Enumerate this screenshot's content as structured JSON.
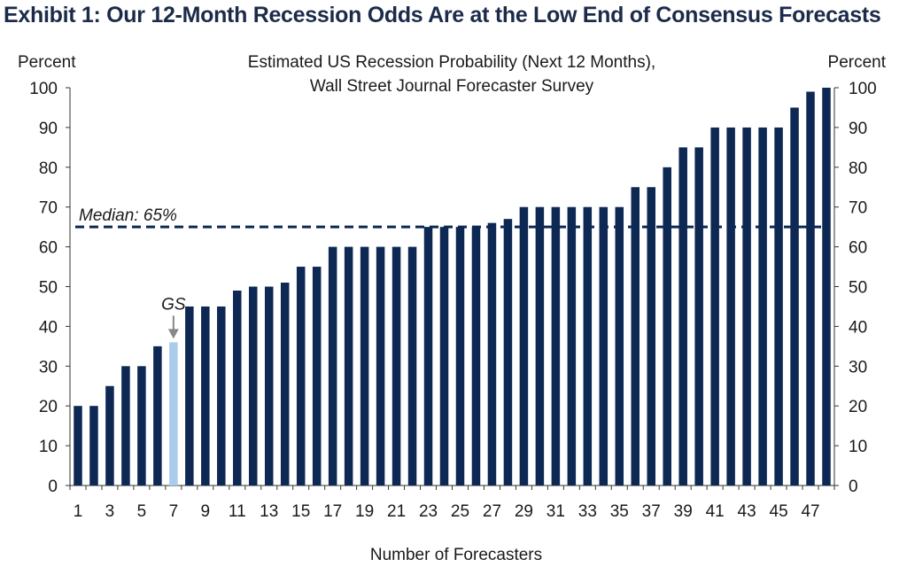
{
  "exhibit_title": "Exhibit 1: Our 12-Month Recession Odds Are at the Low End of Consensus Forecasts",
  "chart_data": {
    "type": "bar",
    "title_lines": [
      "Estimated US Recession Probability (Next 12 Months),",
      "Wall Street Journal Forecaster Survey"
    ],
    "ylabel_left": "Percent",
    "ylabel_right": "Percent",
    "xlabel": "Number of Forecasters",
    "ylim": [
      0,
      100
    ],
    "yticks": [
      0,
      10,
      20,
      30,
      40,
      50,
      60,
      70,
      80,
      90,
      100
    ],
    "xtick_labels": [
      "1",
      "3",
      "5",
      "7",
      "9",
      "11",
      "13",
      "15",
      "17",
      "19",
      "21",
      "23",
      "25",
      "27",
      "29",
      "31",
      "33",
      "35",
      "37",
      "39",
      "41",
      "43",
      "45",
      "47"
    ],
    "categories": [
      1,
      2,
      3,
      4,
      5,
      6,
      7,
      8,
      9,
      10,
      11,
      12,
      13,
      14,
      15,
      16,
      17,
      18,
      19,
      20,
      21,
      22,
      23,
      24,
      25,
      26,
      27,
      28,
      29,
      30,
      31,
      32,
      33,
      34,
      35,
      36,
      37,
      38,
      39,
      40,
      41,
      42,
      43,
      44,
      45,
      46,
      47,
      48
    ],
    "values": [
      20,
      20,
      25,
      30,
      30,
      35,
      36,
      45,
      45,
      45,
      49,
      50,
      50,
      51,
      55,
      55,
      60,
      60,
      60,
      60,
      60,
      60,
      65,
      65,
      65,
      65,
      66,
      67,
      70,
      70,
      70,
      70,
      70,
      70,
      70,
      75,
      75,
      80,
      85,
      85,
      90,
      90,
      90,
      90,
      90,
      95,
      99,
      100
    ],
    "highlight": {
      "index": 6,
      "label": "GS",
      "color": "#a9cdea"
    },
    "bar_color": "#0c2853",
    "median": {
      "value": 65,
      "label": "Median:  65%",
      "color": "#0c2853"
    }
  }
}
